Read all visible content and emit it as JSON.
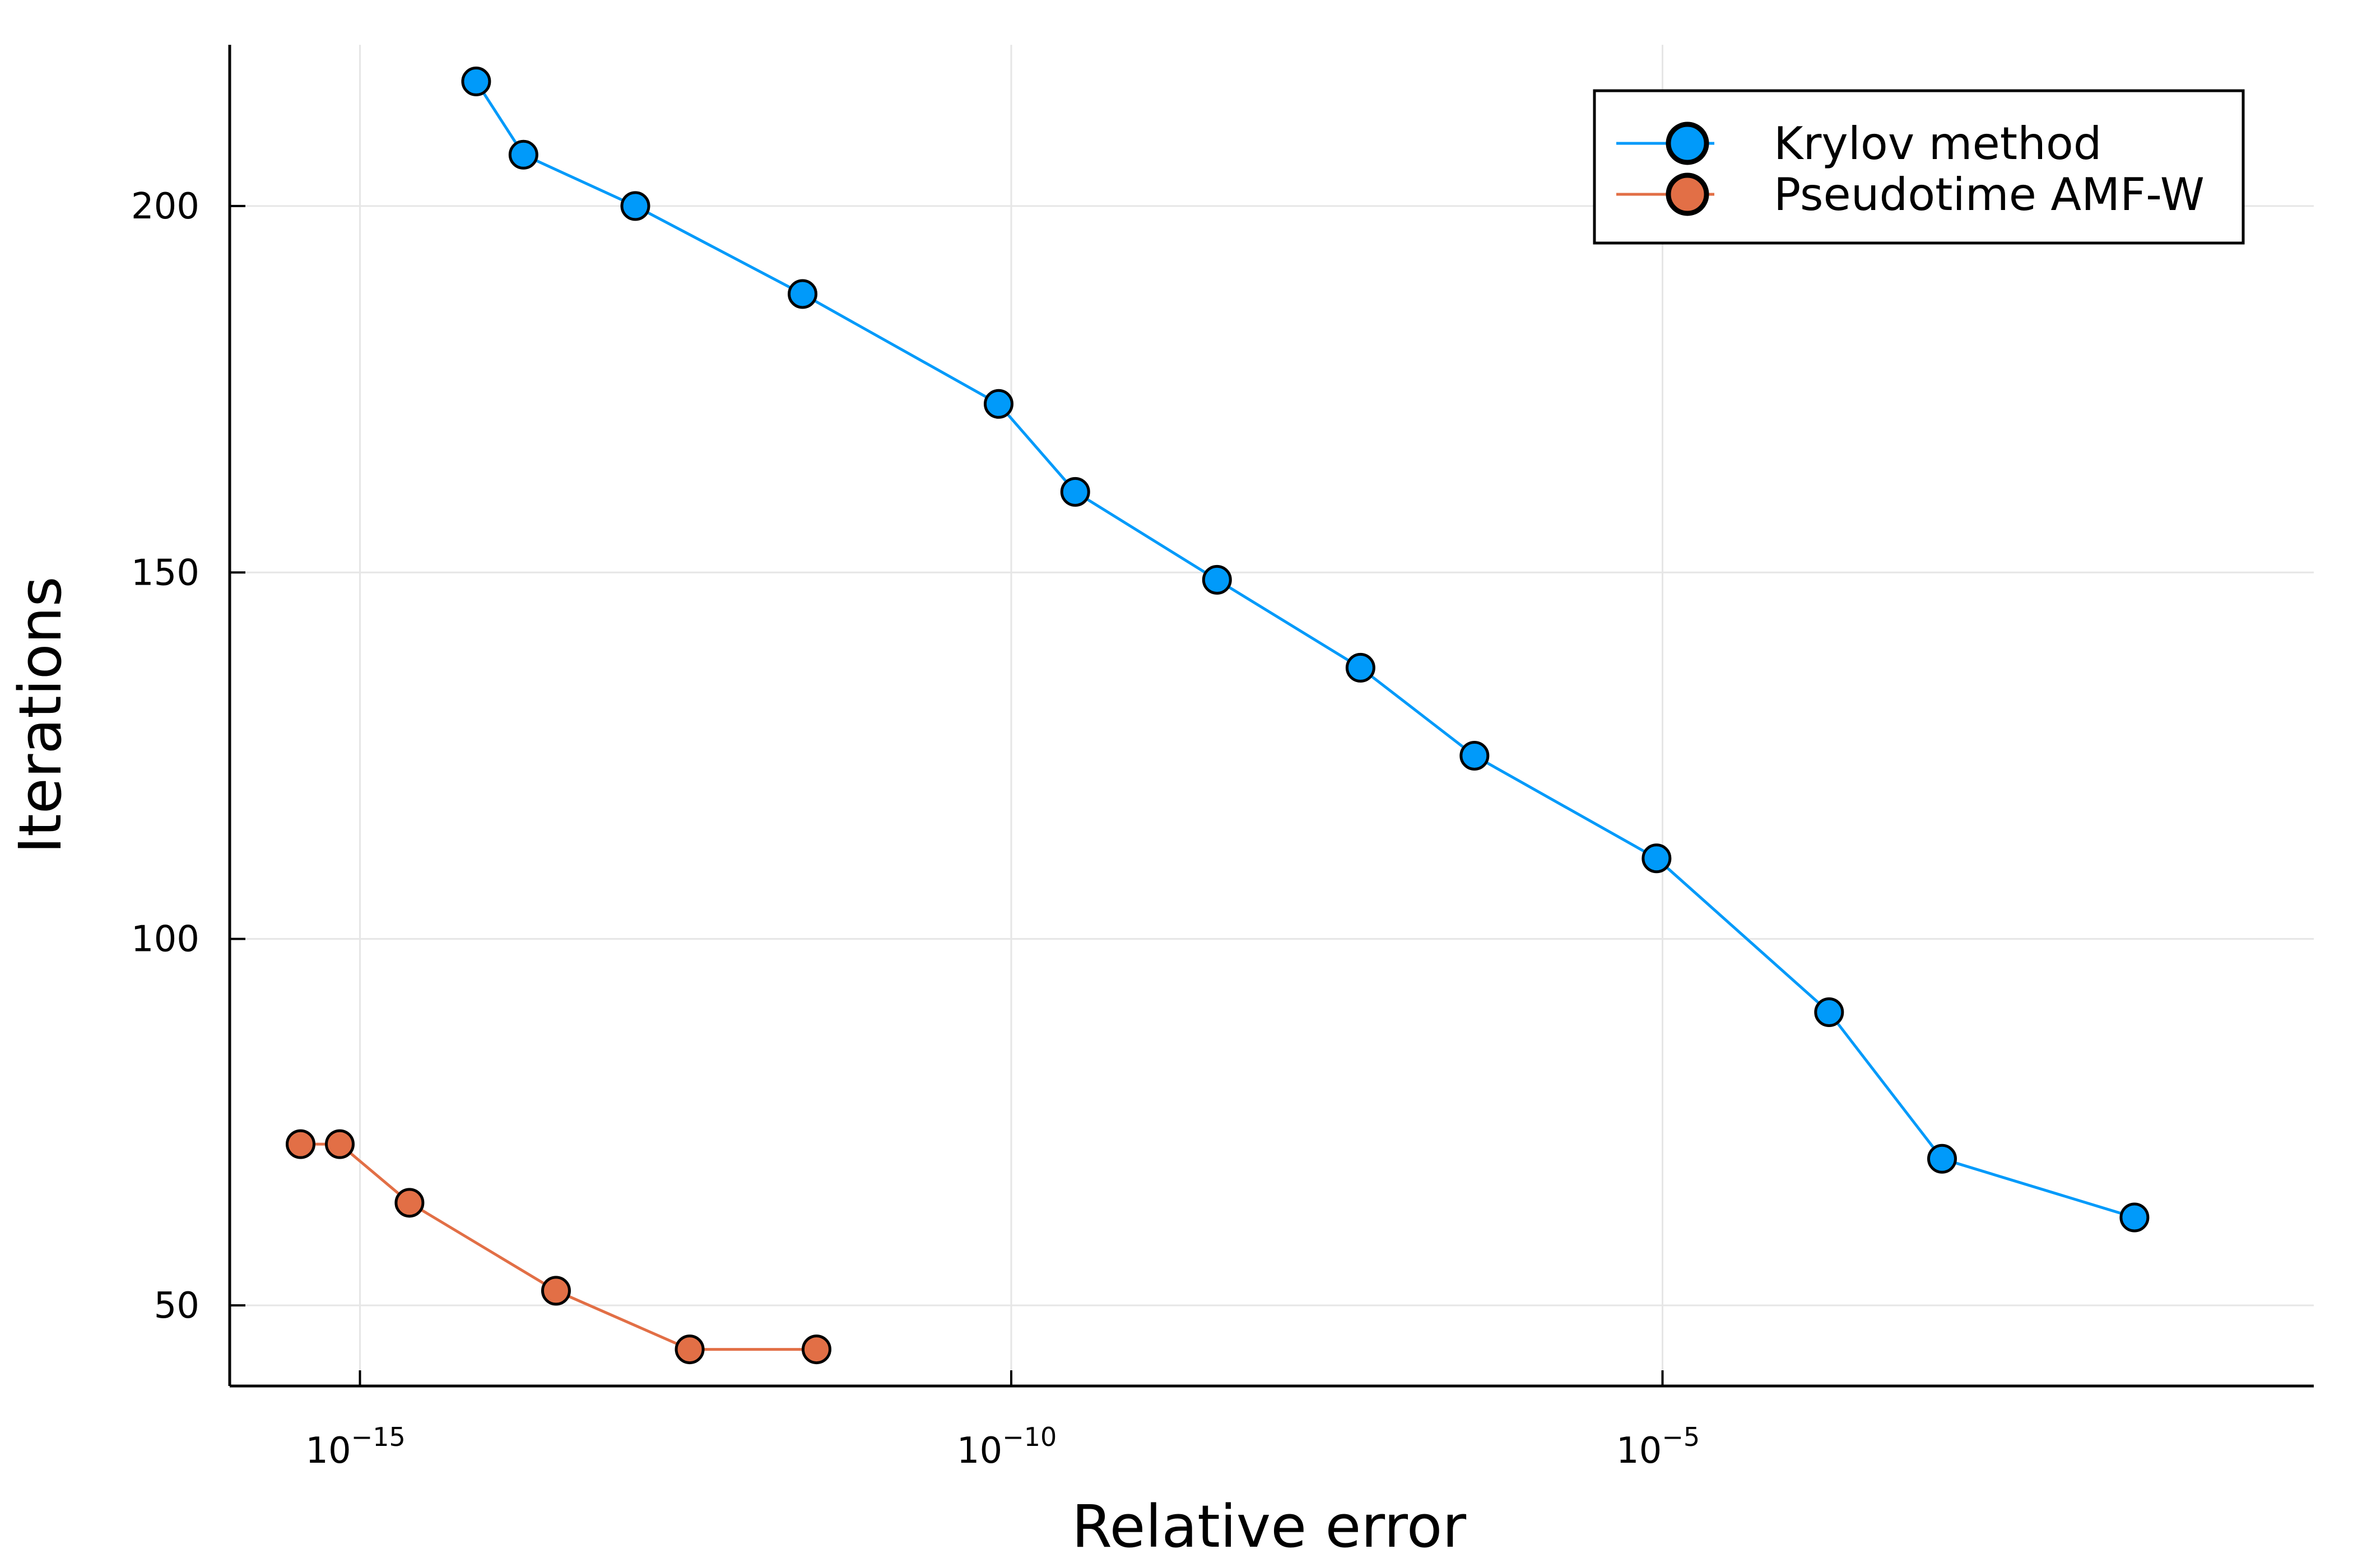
{
  "chart_data": {
    "type": "line",
    "xlabel": "Relative error",
    "ylabel": "Iterations",
    "xscale": "log10",
    "xlim": [
      1e-16,
      1.0
    ],
    "ylim": [
      39,
      222
    ],
    "xticks": [
      {
        "value": 1e-15,
        "base": "10",
        "exp": "−15"
      },
      {
        "value": 1e-10,
        "base": "10",
        "exp": "−10"
      },
      {
        "value": 1e-05,
        "base": "10",
        "exp": "−5"
      }
    ],
    "yticks": [
      {
        "value": 50,
        "label": "50"
      },
      {
        "value": 100,
        "label": "100"
      },
      {
        "value": 150,
        "label": "150"
      },
      {
        "value": 200,
        "label": "200"
      }
    ],
    "grid": true,
    "legend_position": "top-right",
    "series": [
      {
        "name": "Krylov method",
        "color": "#009AFA",
        "x": [
          7.8e-15,
          1.8e-14,
          1.3e-13,
          2.5e-12,
          8e-11,
          3.1e-10,
          3.8e-09,
          4.8e-08,
          3.6e-07,
          9e-06,
          0.00019,
          0.0014,
          0.042
        ],
        "y": [
          217,
          207,
          200,
          188,
          173,
          161,
          149,
          137,
          125,
          111,
          90,
          70,
          62
        ]
      },
      {
        "name": "Pseudotime AMF-W",
        "color": "#E26F46",
        "x": [
          3.5e-16,
          7e-16,
          2.4e-15,
          3.2e-14,
          3.4e-13,
          3.2e-12
        ],
        "y": [
          72,
          72,
          64,
          52,
          44,
          44
        ]
      }
    ]
  }
}
